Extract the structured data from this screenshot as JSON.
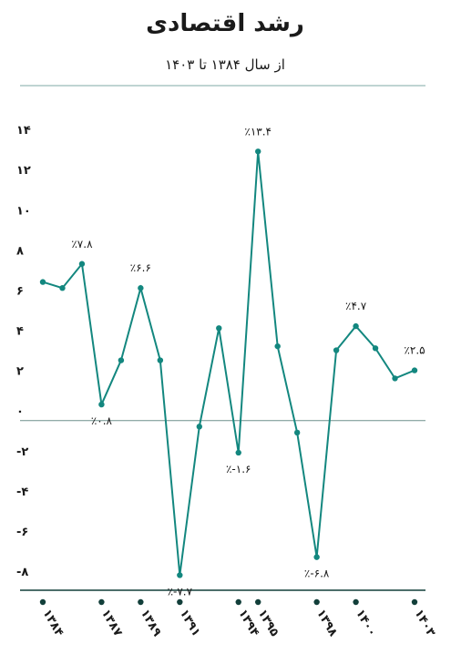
{
  "chart_data": {
    "type": "line",
    "title": "رشد اقتصادی",
    "subtitle": "از سال ۱۳۸۴ تا ۱۴۰۳",
    "categories": [
      "۱۳۸۴",
      null,
      null,
      "۱۳۸۷",
      null,
      "۱۳۸۹",
      null,
      "۱۳۹۱",
      null,
      null,
      "۱۳۹۴",
      "۱۳۹۵",
      null,
      null,
      "۱۳۹۸",
      null,
      "۱۴۰۰",
      null,
      null,
      "۱۴۰۳"
    ],
    "values": [
      6.9,
      6.6,
      7.8,
      0.8,
      3.0,
      6.6,
      3.0,
      -7.7,
      -0.3,
      4.6,
      -1.6,
      13.4,
      3.7,
      -0.6,
      -6.8,
      3.5,
      4.7,
      3.6,
      2.1,
      2.5
    ],
    "value_labels": [
      null,
      null,
      "٪۷.۸",
      "٪۰.۸",
      null,
      "٪۶.۶",
      null,
      "٪-۷.۷",
      null,
      null,
      "٪-۱.۶",
      "٪۱۳.۴",
      null,
      null,
      "٪-۶.۸",
      null,
      "٪۴.۷",
      null,
      null,
      "٪۲.۵"
    ],
    "color": "#13877f",
    "ylim": [
      -8.45,
      15.5
    ],
    "yticks": [
      {
        "value": -8,
        "label": "-۸"
      },
      {
        "value": -6,
        "label": "-۶"
      },
      {
        "value": -4,
        "label": "-۴"
      },
      {
        "value": -2,
        "label": "-۲"
      },
      {
        "value": 0,
        "label": "۰"
      },
      {
        "value": 2,
        "label": "۲"
      },
      {
        "value": 4,
        "label": "۴"
      },
      {
        "value": 6,
        "label": "۶"
      },
      {
        "value": 8,
        "label": "۸"
      },
      {
        "value": 10,
        "label": "۱۰"
      },
      {
        "value": 12,
        "label": "۱۲"
      },
      {
        "value": 14,
        "label": "۱۴"
      }
    ]
  }
}
